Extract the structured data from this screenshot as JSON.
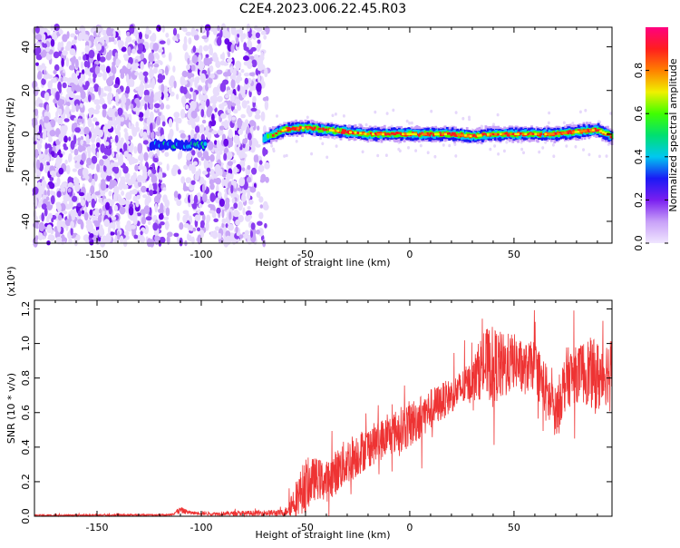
{
  "title": "C2E4.2023.006.22.45.R03",
  "chart_data": [
    {
      "type": "heatmap",
      "xlabel": "Height of straight line (km)",
      "ylabel": "Frequency (Hz)",
      "xlim": [
        -180,
        97
      ],
      "ylim": [
        -50,
        49
      ],
      "x_ticks": [
        "-150",
        "-100",
        "-50",
        "0",
        "50"
      ],
      "x_tick_values": [
        -150,
        -100,
        -50,
        0,
        50
      ],
      "y_ticks": [
        "-40",
        "-20",
        "0",
        "20",
        "40"
      ],
      "y_tick_values": [
        -40,
        -20,
        0,
        20,
        40
      ],
      "colorbar": {
        "label": "Normalized spectral amplitude",
        "range": [
          0,
          1
        ],
        "ticks": [
          "0.0",
          "0.2",
          "0.4",
          "0.6",
          "0.8"
        ],
        "tick_values": [
          0.0,
          0.2,
          0.4,
          0.6,
          0.8
        ],
        "colormap": [
          "#f0e6ff",
          "#c8a0f8",
          "#7a1ef0",
          "#1a1af5",
          "#00c8f0",
          "#00e070",
          "#40ff00",
          "#f0f000",
          "#ff8000",
          "#ff1e1e",
          "#ff0080"
        ]
      },
      "noise_region_x": [
        -180,
        -68
      ],
      "noise_gap_x": [
        -118,
        -108
      ],
      "weak_segment": {
        "x": [
          -124,
          -98
        ],
        "freq": -5,
        "level": 0.45
      },
      "signal_track": [
        {
          "x": -70,
          "freq": -2
        },
        {
          "x": -60,
          "freq": 2
        },
        {
          "x": -50,
          "freq": 3
        },
        {
          "x": -40,
          "freq": 2
        },
        {
          "x": -30,
          "freq": 1
        },
        {
          "x": -20,
          "freq": 0
        },
        {
          "x": -10,
          "freq": 0
        },
        {
          "x": 0,
          "freq": 0
        },
        {
          "x": 10,
          "freq": 0
        },
        {
          "x": 20,
          "freq": 0
        },
        {
          "x": 30,
          "freq": -1
        },
        {
          "x": 40,
          "freq": 0
        },
        {
          "x": 50,
          "freq": 0
        },
        {
          "x": 60,
          "freq": 0
        },
        {
          "x": 70,
          "freq": 0
        },
        {
          "x": 80,
          "freq": 1
        },
        {
          "x": 90,
          "freq": 2
        },
        {
          "x": 97,
          "freq": -1
        }
      ]
    },
    {
      "type": "line",
      "xlabel": "Height of straight line (km)",
      "ylabel": "SNR (10 * v/v)",
      "yscale_label": "(x10⁴)",
      "xlim": [
        -180,
        97
      ],
      "ylim": [
        0,
        1.25
      ],
      "x_ticks": [
        "-150",
        "-100",
        "-50",
        "0",
        "50"
      ],
      "x_tick_values": [
        -150,
        -100,
        -50,
        0,
        50
      ],
      "y_ticks": [
        "0.0",
        "0.2",
        "0.4",
        "0.6",
        "0.8",
        "1.0",
        "1.2"
      ],
      "y_tick_values": [
        0.0,
        0.2,
        0.4,
        0.6,
        0.8,
        1.0,
        1.2
      ],
      "line_color": "#ee3333",
      "envelope": {
        "x": [
          -180,
          -115,
          -110,
          -105,
          -95,
          -60,
          -55,
          -50,
          -45,
          -40,
          -30,
          -20,
          -10,
          0,
          10,
          20,
          30,
          35,
          40,
          45,
          50,
          55,
          60,
          65,
          70,
          75,
          80,
          85,
          90,
          97
        ],
        "mean": [
          0.005,
          0.008,
          0.035,
          0.02,
          0.015,
          0.02,
          0.1,
          0.18,
          0.22,
          0.2,
          0.32,
          0.4,
          0.47,
          0.53,
          0.62,
          0.7,
          0.78,
          0.88,
          0.88,
          0.86,
          0.9,
          0.85,
          0.88,
          0.72,
          0.6,
          0.8,
          0.82,
          0.84,
          0.8,
          0.86
        ],
        "amp": [
          0.005,
          0.005,
          0.02,
          0.01,
          0.01,
          0.02,
          0.1,
          0.16,
          0.12,
          0.12,
          0.14,
          0.12,
          0.12,
          0.14,
          0.12,
          0.1,
          0.12,
          0.2,
          0.22,
          0.2,
          0.16,
          0.15,
          0.14,
          0.18,
          0.14,
          0.18,
          0.16,
          0.2,
          0.22,
          0.18
        ]
      }
    }
  ]
}
